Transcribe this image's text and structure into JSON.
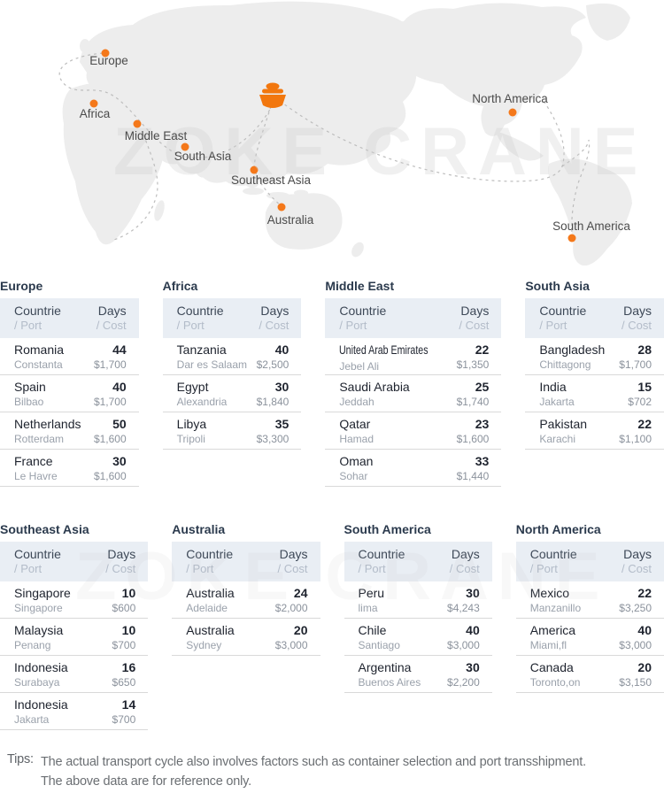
{
  "map": {
    "watermark": "ZOKE CRANE",
    "regions": [
      "Europe",
      "Africa",
      "Middle East",
      "South Asia",
      "Southeast Asia",
      "Australia",
      "North America",
      "South America"
    ]
  },
  "table_header": {
    "country_line1": "Countrie",
    "country_line2": "/ Port",
    "days_line1": "Days",
    "days_line2": "/ Cost"
  },
  "table_groups": [
    [
      {
        "region": "Europe",
        "rows": [
          {
            "country": "Romania",
            "port": "Constanta",
            "days": "44",
            "cost": "$1,700"
          },
          {
            "country": "Spain",
            "port": "Bilbao",
            "days": "40",
            "cost": "$1,700"
          },
          {
            "country": "Netherlands",
            "port": "Rotterdam",
            "days": "50",
            "cost": "$1,600"
          },
          {
            "country": "France",
            "port": "Le Havre",
            "days": "30",
            "cost": "$1,600"
          }
        ]
      },
      {
        "region": "Africa",
        "rows": [
          {
            "country": "Tanzania",
            "port": "Dar es Salaam",
            "days": "40",
            "cost": "$2,500"
          },
          {
            "country": "Egypt",
            "port": "Alexandria",
            "days": "30",
            "cost": "$1,840"
          },
          {
            "country": "Libya",
            "port": "Tripoli",
            "days": "35",
            "cost": "$3,300"
          }
        ]
      },
      {
        "region": "Middle East",
        "rows": [
          {
            "country": "United Arab Emirates",
            "port": "Jebel Ali",
            "days": "22",
            "cost": "$1,350"
          },
          {
            "country": "Saudi Arabia",
            "port": "Jeddah",
            "days": "25",
            "cost": "$1,740"
          },
          {
            "country": "Qatar",
            "port": "Hamad",
            "days": "23",
            "cost": "$1,600"
          },
          {
            "country": "Oman",
            "port": "Sohar",
            "days": "33",
            "cost": "$1,440"
          }
        ]
      },
      {
        "region": "South Asia",
        "rows": [
          {
            "country": "Bangladesh",
            "port": "Chittagong",
            "days": "28",
            "cost": "$1,700"
          },
          {
            "country": "India",
            "port": "Jakarta",
            "days": "15",
            "cost": "$702"
          },
          {
            "country": "Pakistan",
            "port": "Karachi",
            "days": "22",
            "cost": "$1,100"
          }
        ]
      }
    ],
    [
      {
        "region": "Southeast Asia",
        "rows": [
          {
            "country": "Singapore",
            "port": "Singapore",
            "days": "10",
            "cost": "$600"
          },
          {
            "country": "Malaysia",
            "port": "Penang",
            "days": "10",
            "cost": "$700"
          },
          {
            "country": "Indonesia",
            "port": "Surabaya",
            "days": "16",
            "cost": "$650"
          },
          {
            "country": "Indonesia",
            "port": "Jakarta",
            "days": "14",
            "cost": "$700"
          }
        ]
      },
      {
        "region": "Australia",
        "rows": [
          {
            "country": "Australia",
            "port": "Adelaide",
            "days": "24",
            "cost": "$2,000"
          },
          {
            "country": "Australia",
            "port": "Sydney",
            "days": "20",
            "cost": "$3,000"
          }
        ]
      },
      {
        "region": "South America",
        "rows": [
          {
            "country": "Peru",
            "port": "lima",
            "days": "30",
            "cost": "$4,243"
          },
          {
            "country": "Chile",
            "port": "Santiago",
            "days": "40",
            "cost": "$3,000"
          },
          {
            "country": "Argentina",
            "port": "Buenos Aires",
            "days": "30",
            "cost": "$2,200"
          }
        ]
      },
      {
        "region": "North America",
        "rows": [
          {
            "country": "Mexico",
            "port": "Manzanillo",
            "days": "22",
            "cost": "$3,250"
          },
          {
            "country": "America",
            "port": "Miami,fl",
            "days": "40",
            "cost": "$3,000"
          },
          {
            "country": "Canada",
            "port": "Toronto,on",
            "days": "20",
            "cost": "$3,150"
          }
        ]
      }
    ]
  ],
  "tips": {
    "label": "Tips:",
    "line1": "The actual transport cycle also involves factors such as container selection and port transshipment.",
    "line2": "The above data are for reference only."
  },
  "colors": {
    "accent_orange": "#F4781A",
    "header_bg": "#E9EEF4",
    "title_navy": "#2B3A4D",
    "map_land": "#EDEDED"
  }
}
